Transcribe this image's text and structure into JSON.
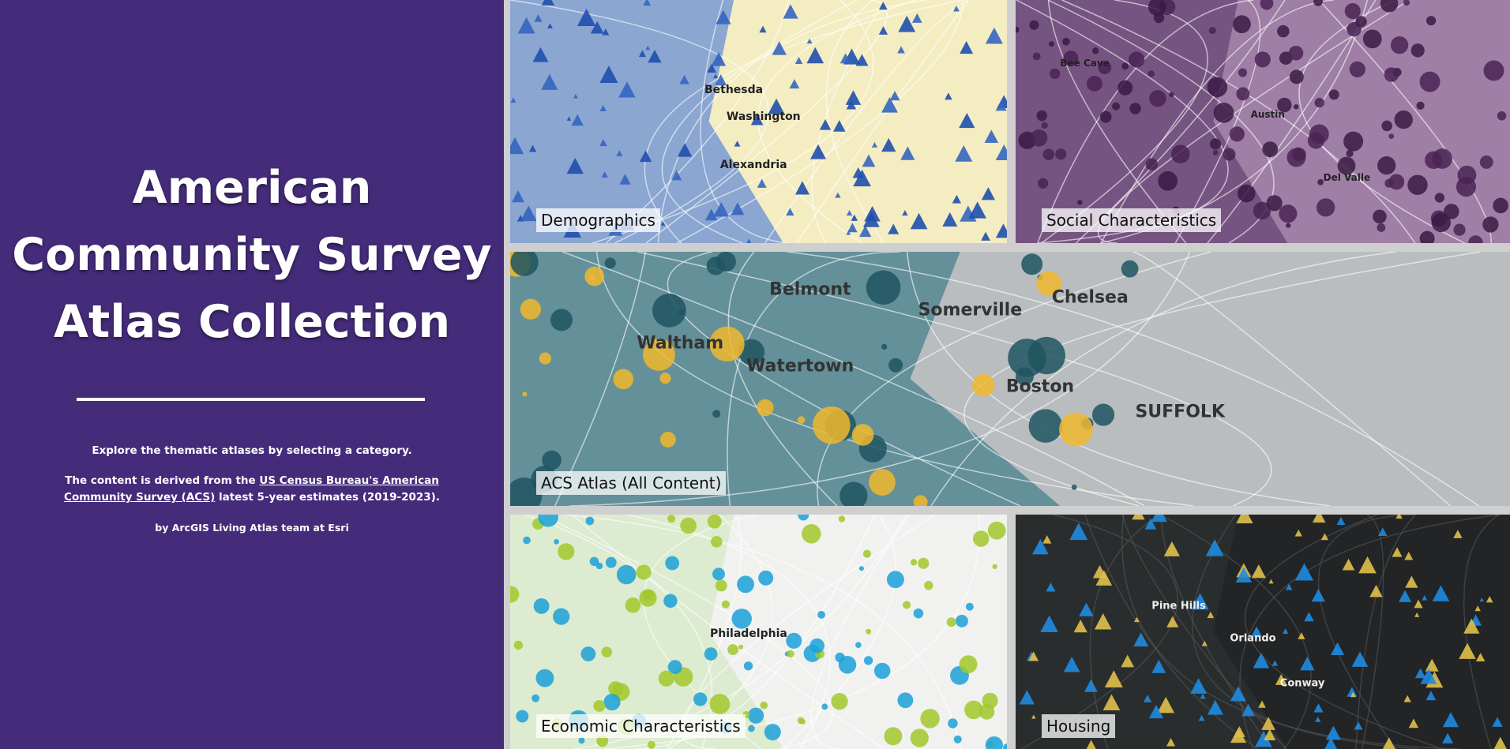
{
  "panel": {
    "title_lines": [
      "American",
      "Community Survey",
      "Atlas Collection"
    ],
    "intro": "Explore the thematic atlases by selecting a category.",
    "source_before": "The content is derived from the ",
    "source_link": "US Census Bureau's American Community Survey (ACS)",
    "source_after": " latest 5-year estimates (2019-2023).",
    "credit": "by ArcGIS Living Atlas team at Esri"
  },
  "tiles": [
    {
      "label": "Demographics",
      "places": [
        "Washington",
        "Alexandria",
        "Bethesda"
      ]
    },
    {
      "label": "Social Characteristics",
      "places": [
        "Austin",
        "Del Valle",
        "Bee Cave"
      ]
    },
    {
      "label": "ACS Atlas (All Content)",
      "places": [
        "Boston",
        "Somerville",
        "Waltham",
        "Watertown",
        "Belmont",
        "Chelsea",
        "SUFFOLK"
      ]
    },
    {
      "label": "Economic Characteristics",
      "places": [
        "Philadelphia"
      ]
    },
    {
      "label": "Housing",
      "places": [
        "Orlando",
        "Pine Hills",
        "Conway"
      ]
    }
  ]
}
